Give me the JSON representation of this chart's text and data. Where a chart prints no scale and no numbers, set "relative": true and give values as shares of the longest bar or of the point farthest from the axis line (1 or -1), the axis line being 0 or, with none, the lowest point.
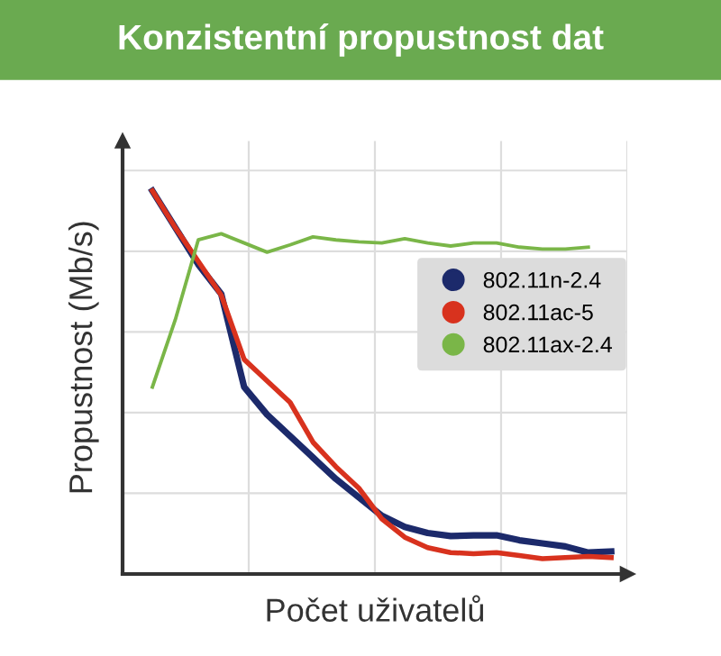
{
  "chart_data": {
    "type": "line",
    "title": "Konzistentní propustnost dat",
    "xlabel": "Počet uživatelů",
    "ylabel": "Propustnost (Mb/s)",
    "relative": true,
    "grid": true,
    "legend": "right",
    "marker": "none",
    "line_style": "solid",
    "categories": [
      null,
      null,
      null,
      null,
      null,
      null,
      null,
      null,
      null,
      null,
      null,
      null,
      null,
      null,
      null,
      null,
      null,
      null,
      null,
      null,
      null
    ],
    "series": [
      {
        "name": "802.11n-2.4",
        "color": "#1c2a6b",
        "values": [
          1.0,
          0.904,
          0.808,
          0.731,
          0.488,
          0.416,
          0.36,
          0.304,
          0.248,
          0.2,
          0.152,
          0.123,
          0.107,
          0.099,
          0.101,
          0.101,
          0.088,
          0.08,
          0.072,
          0.056,
          0.059
        ]
      },
      {
        "name": "802.11ac-5",
        "color": "#d8321e",
        "values": [
          1.0,
          0.904,
          0.816,
          0.728,
          0.56,
          0.504,
          0.448,
          0.344,
          0.28,
          0.224,
          0.144,
          0.096,
          0.069,
          0.056,
          0.053,
          0.056,
          0.048,
          0.04,
          0.043,
          0.046,
          0.043
        ]
      },
      {
        "name": "802.11ax-2.4",
        "color": "#7ab648",
        "values": [
          0.488,
          0.664,
          0.872,
          0.888,
          0.864,
          0.84,
          0.859,
          0.88,
          0.872,
          0.867,
          0.864,
          0.875,
          0.864,
          0.856,
          0.864,
          0.864,
          0.853,
          0.848,
          0.848,
          0.853,
          null
        ]
      }
    ]
  }
}
